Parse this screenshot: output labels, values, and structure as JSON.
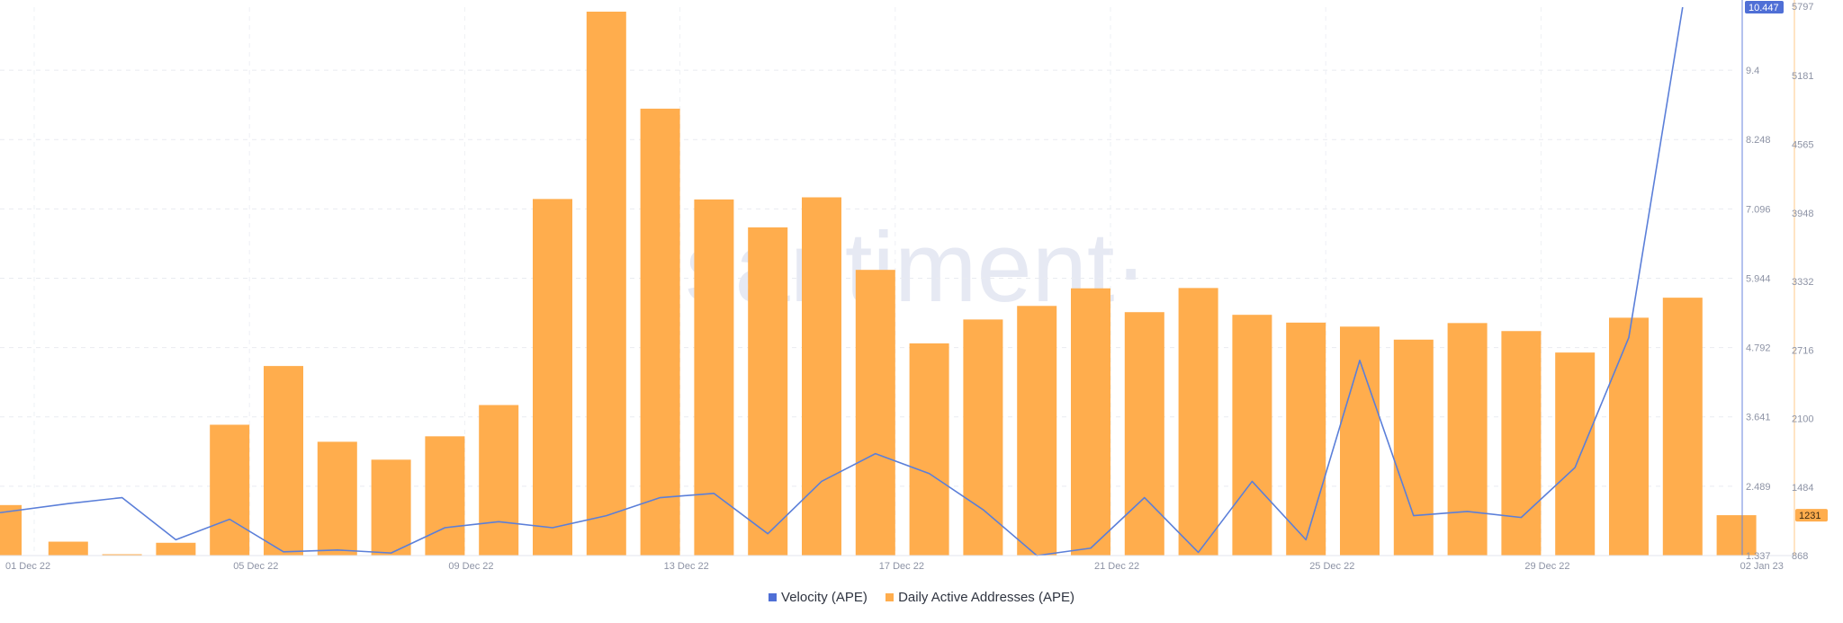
{
  "watermark": "·santiment·",
  "legend": {
    "velocity": "Velocity (APE)",
    "daa": "Daily Active Addresses (APE)"
  },
  "colors": {
    "velocity": "#5b7fd9",
    "daa": "#ffad4d",
    "velocity_badge": "#4f6fd6",
    "daa_badge": "#ffad4d"
  },
  "chart_data": {
    "type": "bar",
    "x": [
      "01 Dec 22",
      "02 Dec 22",
      "03 Dec 22",
      "04 Dec 22",
      "05 Dec 22",
      "06 Dec 22",
      "07 Dec 22",
      "08 Dec 22",
      "09 Dec 22",
      "10 Dec 22",
      "11 Dec 22",
      "12 Dec 22",
      "13 Dec 22",
      "14 Dec 22",
      "15 Dec 22",
      "16 Dec 22",
      "17 Dec 22",
      "18 Dec 22",
      "19 Dec 22",
      "20 Dec 22",
      "21 Dec 22",
      "22 Dec 22",
      "23 Dec 22",
      "24 Dec 22",
      "25 Dec 22",
      "26 Dec 22",
      "27 Dec 22",
      "28 Dec 22",
      "29 Dec 22",
      "30 Dec 22",
      "31 Dec 22",
      "01 Jan 23",
      "02 Jan 23"
    ],
    "x_tick_labels": [
      "01 Dec 22",
      "05 Dec 22",
      "09 Dec 22",
      "13 Dec 22",
      "17 Dec 22",
      "21 Dec 22",
      "25 Dec 22",
      "29 Dec 22",
      "02 Jan 23"
    ],
    "series": [
      {
        "name": "Daily Active Addresses (APE)",
        "type": "bar",
        "axis": "right",
        "values": [
          1322,
          993,
          880,
          983,
          2044,
          2572,
          1891,
          1730,
          1940,
          2221,
          4073,
          5757,
          4885,
          4069,
          3818,
          4088,
          3436,
          2775,
          2990,
          3112,
          3270,
          3056,
          3273,
          3032,
          2962,
          2926,
          2809,
          2958,
          2886,
          2693,
          3006,
          3186,
          1231
        ]
      },
      {
        "name": "Velocity (APE)",
        "type": "line",
        "axis": "left",
        "values": [
          2.05,
          2.2,
          2.3,
          1.6,
          1.94,
          1.4,
          1.43,
          1.38,
          1.8,
          1.9,
          1.8,
          2.0,
          2.3,
          2.37,
          1.7,
          2.57,
          3.03,
          2.7,
          2.1,
          1.337,
          1.46,
          2.3,
          1.39,
          2.57,
          1.6,
          4.58,
          2.0,
          2.07,
          1.97,
          2.8,
          4.96,
          10.447,
          null
        ]
      }
    ],
    "y_left": {
      "ticks": [
        "1.337",
        "2.489",
        "3.641",
        "4.792",
        "5.944",
        "7.096",
        "8.248",
        "9.4"
      ],
      "ylim": [
        1.337,
        10.447
      ]
    },
    "y_right": {
      "ticks": [
        "868",
        "1484",
        "2100",
        "2716",
        "3332",
        "3948",
        "4565",
        "5181",
        "5797"
      ],
      "ylim": [
        868,
        5797
      ]
    },
    "last_value_badges": {
      "velocity": "10.447",
      "daa": "1231"
    },
    "grid": true,
    "legend_position": "bottom-center"
  }
}
